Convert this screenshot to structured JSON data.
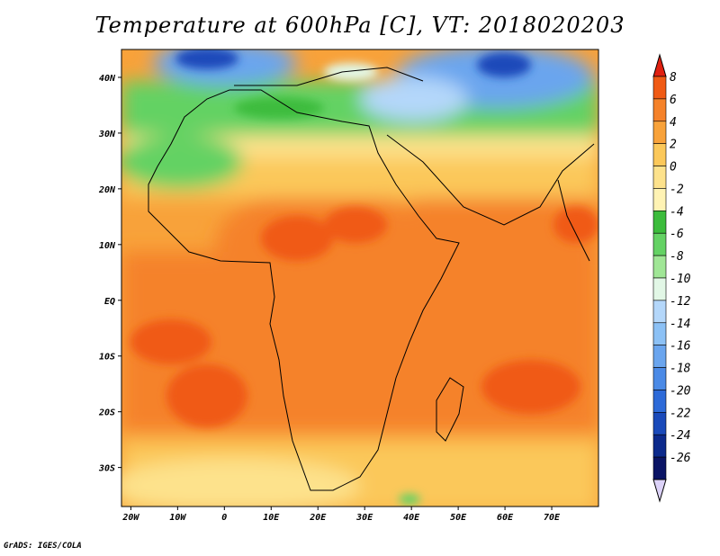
{
  "title": "Temperature at 600hPa [C], VT: 2018020203",
  "credit": "GrADS: IGES/COLA",
  "map": {
    "lon_range": [
      -22,
      80
    ],
    "lat_range": [
      -37,
      45
    ],
    "lon_ticks": [
      {
        "value": -20,
        "label": "20W"
      },
      {
        "value": -10,
        "label": "10W"
      },
      {
        "value": 0,
        "label": "0"
      },
      {
        "value": 10,
        "label": "10E"
      },
      {
        "value": 20,
        "label": "20E"
      },
      {
        "value": 30,
        "label": "30E"
      },
      {
        "value": 40,
        "label": "40E"
      },
      {
        "value": 50,
        "label": "50E"
      },
      {
        "value": 60,
        "label": "60E"
      },
      {
        "value": 70,
        "label": "70E"
      }
    ],
    "lat_ticks": [
      {
        "value": 40,
        "label": "40N"
      },
      {
        "value": 30,
        "label": "30N"
      },
      {
        "value": 20,
        "label": "20N"
      },
      {
        "value": 10,
        "label": "10N"
      },
      {
        "value": 0,
        "label": "EQ"
      },
      {
        "value": -10,
        "label": "10S"
      },
      {
        "value": -20,
        "label": "20S"
      },
      {
        "value": -30,
        "label": "30S"
      }
    ]
  },
  "colorbar": {
    "labels": [
      "8",
      "6",
      "4",
      "2",
      "0",
      "-2",
      "-4",
      "-6",
      "-8",
      "-10",
      "-12",
      "-14",
      "-16",
      "-18",
      "-20",
      "-22",
      "-24",
      "-26"
    ],
    "colors": [
      "#e02010",
      "#f05a14",
      "#f5822a",
      "#f8a23a",
      "#fbc85a",
      "#fde28c",
      "#fff3b4",
      "#3cbc3c",
      "#64d264",
      "#a0e696",
      "#e2f7e6",
      "#b4d7fa",
      "#8cc1f5",
      "#6aa5ee",
      "#4b8ae6",
      "#2d6ad8",
      "#1a4aba",
      "#0c2a8c",
      "#0a1465",
      "#dcd2f8"
    ]
  }
}
